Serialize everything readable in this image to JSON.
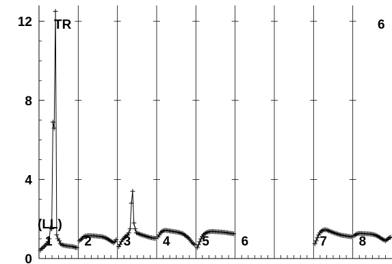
{
  "chart_data": {
    "type": "line",
    "title": "",
    "xlabel": "",
    "ylabel": "",
    "ylim": [
      0,
      12.8
    ],
    "y_ticks": [
      "0",
      "4",
      "8",
      "12"
    ],
    "y_tick_values": [
      0,
      4,
      8,
      12
    ],
    "grid": true,
    "marker": "+",
    "annotations": {
      "top_left": "TR",
      "top_right": "6",
      "left_mid": "(LL)"
    },
    "panels": [
      {
        "label": "1",
        "values": [
          0.42,
          0.5,
          0.55,
          0.6,
          0.68,
          0.75,
          0.85,
          1.0,
          1.55,
          1.5,
          6.9,
          6.6,
          12.5,
          1.2,
          1.0,
          0.9,
          0.75,
          0.7,
          0.68,
          0.66,
          0.65,
          0.64,
          0.63,
          0.62,
          0.62,
          0.61,
          0.6,
          0.58,
          0.56,
          0.55
        ]
      },
      {
        "label": "2",
        "values": [
          0.9,
          0.95,
          1.02,
          1.08,
          1.12,
          1.14,
          1.15,
          1.16,
          1.16,
          1.16,
          1.15,
          1.15,
          1.14,
          1.14,
          1.13,
          1.12,
          1.12,
          1.11,
          1.1,
          1.08,
          1.06,
          1.04,
          1.0,
          0.96,
          0.92,
          0.88,
          0.84,
          0.8,
          0.85,
          0.95
        ]
      },
      {
        "label": "3",
        "values": [
          0.6,
          0.72,
          0.85,
          0.95,
          1.02,
          1.1,
          1.15,
          1.2,
          1.3,
          1.5,
          2.8,
          3.4,
          1.8,
          1.5,
          1.3,
          1.28,
          1.25,
          1.22,
          1.2,
          1.18,
          1.16,
          1.14,
          1.12,
          1.1,
          1.08,
          1.06,
          1.05,
          1.04,
          1.03,
          1.02
        ]
      },
      {
        "label": "4",
        "values": [
          1.1,
          1.2,
          1.3,
          1.36,
          1.4,
          1.42,
          1.43,
          1.42,
          1.41,
          1.4,
          1.39,
          1.38,
          1.37,
          1.36,
          1.35,
          1.34,
          1.33,
          1.31,
          1.29,
          1.27,
          1.25,
          1.2,
          1.15,
          1.1,
          1.05,
          0.98,
          0.9,
          0.82,
          0.75,
          0.7
        ]
      },
      {
        "label": "5",
        "values": [
          0.55,
          0.7,
          0.85,
          1.0,
          1.12,
          1.2,
          1.26,
          1.3,
          1.33,
          1.35,
          1.36,
          1.37,
          1.37,
          1.37,
          1.36,
          1.36,
          1.35,
          1.35,
          1.34,
          1.34,
          1.33,
          1.33,
          1.32,
          1.31,
          1.3,
          1.29,
          1.28,
          1.27,
          1.26,
          1.25
        ]
      },
      {
        "label": "6",
        "values": []
      },
      {
        "label": "",
        "values": []
      },
      {
        "label": "7",
        "values": [
          0.75,
          0.9,
          1.05,
          1.2,
          1.3,
          1.38,
          1.42,
          1.45,
          1.46,
          1.45,
          1.43,
          1.4,
          1.38,
          1.35,
          1.33,
          1.3,
          1.28,
          1.26,
          1.24,
          1.22,
          1.2,
          1.18,
          1.17,
          1.16,
          1.15,
          1.14,
          1.13,
          1.12,
          1.11,
          1.1
        ]
      },
      {
        "label": "8",
        "values": [
          1.15,
          1.2,
          1.24,
          1.26,
          1.27,
          1.27,
          1.27,
          1.26,
          1.26,
          1.26,
          1.25,
          1.25,
          1.24,
          1.24,
          1.23,
          1.22,
          1.2,
          1.18,
          1.15,
          1.12,
          1.08,
          1.04,
          1.0,
          0.96,
          0.93,
          0.9,
          0.95,
          1.0,
          1.05,
          1.08
        ]
      }
    ]
  }
}
